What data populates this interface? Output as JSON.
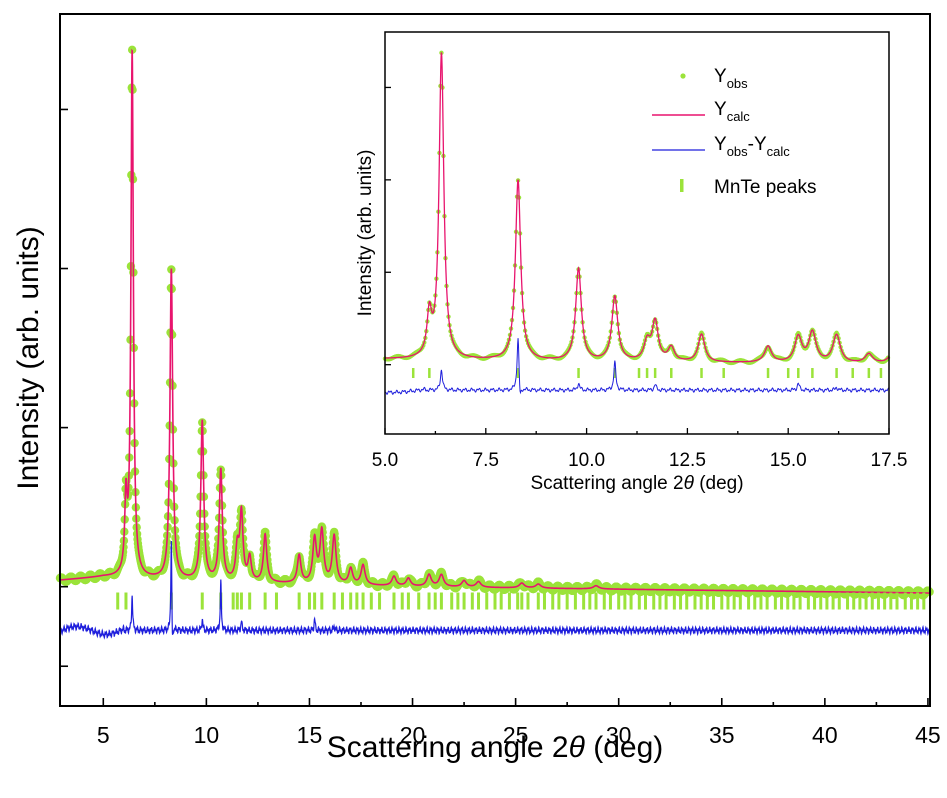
{
  "chart_data": [
    {
      "type": "line",
      "role": "main",
      "xlabel_prefix": "Scattering angle 2",
      "xlabel_symbol": "θ",
      "xlabel_suffix": " (deg)",
      "ylabel": "Intensity (arb. units)",
      "xlim": [
        2.9,
        45.1
      ],
      "xticks": [
        5,
        10,
        15,
        20,
        25,
        30,
        35,
        40,
        45
      ],
      "ylim": [
        -1.5,
        7.2
      ],
      "y_tick_labels": "none",
      "grid": false,
      "colors": {
        "obs": "#9be33a",
        "calc": "#e8146e",
        "diff": "#1f1fdc",
        "ticks": "#9be33a"
      },
      "baseline_offset": 0.0,
      "peaks": [
        {
          "x": 6.1,
          "h": 0.9
        },
        {
          "x": 6.4,
          "h": 6.6
        },
        {
          "x": 8.3,
          "h": 3.9
        },
        {
          "x": 9.8,
          "h": 2.0
        },
        {
          "x": 10.7,
          "h": 1.4
        },
        {
          "x": 11.5,
          "h": 0.4
        },
        {
          "x": 11.7,
          "h": 0.85
        },
        {
          "x": 12.1,
          "h": 0.3
        },
        {
          "x": 12.85,
          "h": 0.6
        },
        {
          "x": 14.5,
          "h": 0.35
        },
        {
          "x": 15.25,
          "h": 0.55
        },
        {
          "x": 15.6,
          "h": 0.65
        },
        {
          "x": 16.2,
          "h": 0.6
        },
        {
          "x": 17.0,
          "h": 0.2
        },
        {
          "x": 17.6,
          "h": 0.25
        },
        {
          "x": 19.1,
          "h": 0.12
        },
        {
          "x": 19.8,
          "h": 0.1
        },
        {
          "x": 20.8,
          "h": 0.15
        },
        {
          "x": 21.4,
          "h": 0.15
        },
        {
          "x": 22.5,
          "h": 0.08
        },
        {
          "x": 23.2,
          "h": 0.07
        },
        {
          "x": 25.3,
          "h": 0.06
        },
        {
          "x": 26.1,
          "h": 0.05
        },
        {
          "x": 28.9,
          "h": 0.04
        }
      ],
      "background": [
        [
          2.9,
          0.08
        ],
        [
          5.0,
          0.12
        ],
        [
          10.0,
          0.06
        ],
        [
          20.0,
          0.0
        ],
        [
          45.1,
          -0.08
        ]
      ],
      "tick_marks_y": -0.18,
      "tick_positions": [
        5.7,
        6.1,
        8.3,
        9.8,
        10.7,
        11.3,
        11.5,
        11.7,
        12.1,
        12.85,
        13.4,
        14.5,
        15.0,
        15.25,
        15.6,
        16.2,
        16.6,
        17.0,
        17.3,
        17.6,
        18.0,
        18.4,
        19.1,
        19.5,
        19.8,
        20.3,
        20.8,
        21.1,
        21.4,
        21.9,
        22.2,
        22.5,
        22.9,
        23.2,
        23.6,
        24.0,
        24.3,
        24.7,
        25.1,
        25.3,
        25.6,
        26.1,
        26.4,
        26.8,
        27.1,
        27.5,
        27.9,
        28.3,
        28.6,
        28.9,
        29.3,
        29.6,
        30.0,
        30.3,
        30.6,
        31.0,
        31.3,
        31.7,
        32.0,
        32.3,
        32.7,
        33.0,
        33.3,
        33.7,
        34.0,
        34.3,
        34.6,
        35.0,
        35.3,
        35.6,
        35.9,
        36.3,
        36.6,
        36.9,
        37.2,
        37.6,
        37.9,
        38.2,
        38.5,
        38.8,
        39.2,
        39.5,
        39.8,
        40.1,
        40.4,
        40.7,
        41.1,
        41.4,
        41.7,
        42.0,
        42.3,
        42.6,
        42.9,
        43.2,
        43.5,
        43.9,
        44.2,
        44.5,
        44.8
      ],
      "diff_baseline_y": -0.55,
      "diff_features": [
        {
          "x": 6.4,
          "d": 0.45
        },
        {
          "x": 8.3,
          "d": 1.2
        },
        {
          "x": 8.35,
          "d": -0.35
        },
        {
          "x": 9.8,
          "d": 0.15
        },
        {
          "x": 10.7,
          "d": 0.6
        },
        {
          "x": 11.7,
          "d": 0.12
        },
        {
          "x": 15.25,
          "d": 0.15
        },
        {
          "x": 16.2,
          "d": 0.06
        }
      ]
    },
    {
      "type": "line",
      "role": "inset",
      "xlabel_prefix": "Scattering angle 2",
      "xlabel_symbol": "θ",
      "xlabel_suffix": " (deg)",
      "ylabel": "Intensity (arb. units)",
      "xlim": [
        5.0,
        17.5
      ],
      "xticks": [
        5.0,
        7.5,
        10.0,
        12.5,
        15.0,
        17.5
      ],
      "ylim": [
        -1.7,
        7.0
      ],
      "y_tick_labels": "none",
      "legend_position": "top-right",
      "legend": [
        {
          "key": "obs",
          "base": "Y",
          "sub": "obs",
          "mid": "",
          "base2": "",
          "sub2": ""
        },
        {
          "key": "calc",
          "base": "Y",
          "sub": "calc",
          "mid": "",
          "base2": "",
          "sub2": ""
        },
        {
          "key": "diff",
          "base": "Y",
          "sub": "obs",
          "mid": "-",
          "base2": "Y",
          "sub2": "calc"
        },
        {
          "key": "ticks",
          "base": "MnTe peaks",
          "sub": "",
          "mid": "",
          "base2": "",
          "sub2": ""
        }
      ]
    }
  ]
}
